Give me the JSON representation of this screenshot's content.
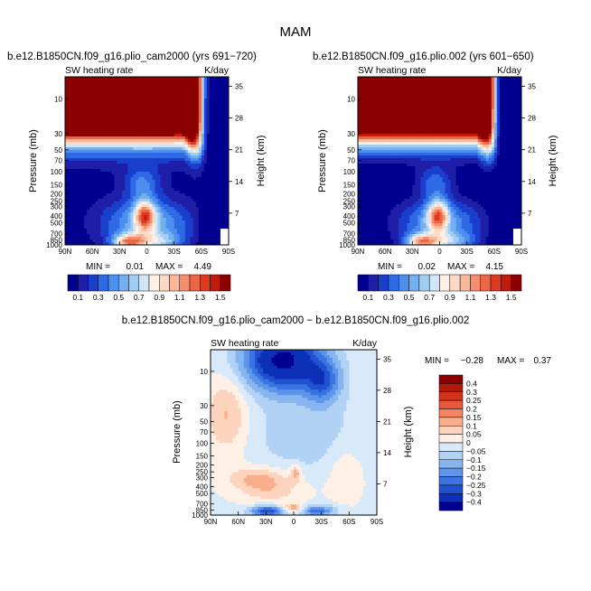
{
  "figure_title": "MAM",
  "colors": {
    "scale1": [
      "#000090",
      "#1e1ea8",
      "#1a3fcc",
      "#2e6ae6",
      "#4d8fef",
      "#74afef",
      "#a2cdf3",
      "#d0e6f8",
      "#fff0e5",
      "#fcd9c4",
      "#f9b89a",
      "#f48e6d",
      "#ec6545",
      "#dc3b22",
      "#c21a0c",
      "#8b0000"
    ],
    "scale_diff": [
      "#8b0000",
      "#b01a0a",
      "#d2321a",
      "#e8583a",
      "#f4845f",
      "#f8ae8c",
      "#fcd3bd",
      "#fff0e5",
      "#d8e9fa",
      "#b2d2f5",
      "#87b5f0",
      "#5d95ea",
      "#3b74e0",
      "#2052cf",
      "#0c30b8",
      "#000090"
    ]
  },
  "chart_data": [
    {
      "id": "panel-left",
      "type": "heatmap",
      "title": "b.e12.B1850CN.f09_g16.plio_cam2000 (yrs 691−720)",
      "subtitle_left": "SW heating rate",
      "subtitle_right": "K/day",
      "xlabel": "",
      "ylabel": "Pressure (mb)",
      "ylabel_right": "Height (km)",
      "x_ticks": [
        "90N",
        "60N",
        "30N",
        "0",
        "30S",
        "60S",
        "90S"
      ],
      "x_range": [
        90,
        -90
      ],
      "p_range": [
        1000,
        5
      ],
      "y_ticks": [
        10,
        30,
        50,
        70,
        100,
        150,
        200,
        250,
        300,
        400,
        500,
        700,
        850,
        1000
      ],
      "height_ticks": [
        7,
        14,
        21,
        28,
        35
      ],
      "stats": {
        "min_label": "MIN =",
        "min_value": "0.01",
        "max_label": "MAX =",
        "max_value": "4.49"
      },
      "colorbar": {
        "orientation": "horizontal",
        "labels": [
          "0.1",
          "0.3",
          "0.5",
          "0.7",
          "0.9",
          "1.1",
          "1.3",
          "1.5"
        ]
      }
    },
    {
      "id": "panel-right",
      "type": "heatmap",
      "title": "b.e12.B1850CN.f09_g16.plio.002 (yrs 601−650)",
      "subtitle_left": "SW heating rate",
      "subtitle_right": "K/day",
      "xlabel": "",
      "ylabel": "Pressure (mb)",
      "ylabel_right": "Height (km)",
      "x_ticks": [
        "90N",
        "60N",
        "30N",
        "0",
        "30S",
        "60S",
        "90S"
      ],
      "x_range": [
        90,
        -90
      ],
      "p_range": [
        1000,
        5
      ],
      "y_ticks": [
        10,
        30,
        50,
        70,
        100,
        150,
        200,
        250,
        300,
        400,
        500,
        700,
        850,
        1000
      ],
      "height_ticks": [
        7,
        14,
        21,
        28,
        35
      ],
      "stats": {
        "min_label": "MIN =",
        "min_value": "0.02",
        "max_label": "MAX =",
        "max_value": "4.15"
      },
      "colorbar": {
        "orientation": "horizontal",
        "labels": [
          "0.1",
          "0.3",
          "0.5",
          "0.7",
          "0.9",
          "1.1",
          "1.3",
          "1.5"
        ]
      }
    },
    {
      "id": "panel-diff",
      "type": "heatmap",
      "title": "b.e12.B1850CN.f09_g16.plio_cam2000 − b.e12.B1850CN.f09_g16.plio.002",
      "subtitle_left": "SW heating rate",
      "subtitle_right": "K/day",
      "xlabel": "",
      "ylabel": "Pressure (mb)",
      "ylabel_right": "Height (km)",
      "x_ticks": [
        "90N",
        "60N",
        "30N",
        "0",
        "30S",
        "60S",
        "90S"
      ],
      "x_range": [
        90,
        -90
      ],
      "p_range": [
        1000,
        5
      ],
      "y_ticks": [
        10,
        30,
        50,
        70,
        100,
        150,
        200,
        250,
        300,
        400,
        500,
        700,
        850,
        1000
      ],
      "height_ticks": [
        7,
        14,
        21,
        28,
        35
      ],
      "stats": {
        "min_label": "MIN =",
        "min_value": "−0.28",
        "max_label": "MAX =",
        "max_value": "0.37"
      },
      "colorbar": {
        "orientation": "vertical",
        "labels": [
          "0.4",
          "0.3",
          "0.25",
          "0.2",
          "0.15",
          "0.1",
          "0.05",
          "0",
          "−0.05",
          "−0.1",
          "−0.15",
          "−0.2",
          "−0.25",
          "−0.3",
          "−0.4"
        ]
      }
    }
  ]
}
